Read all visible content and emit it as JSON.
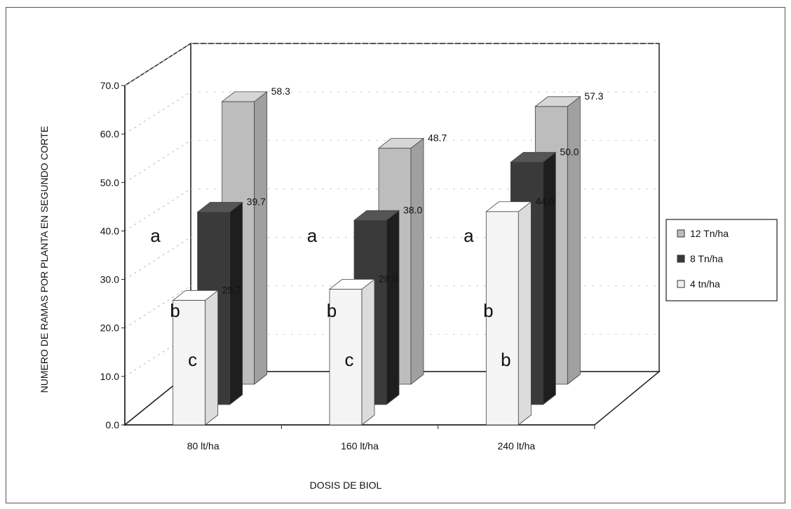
{
  "chart_data": {
    "type": "bar",
    "title": "",
    "xlabel": "DOSIS DE BIOL",
    "ylabel": "NUMERO DE RAMAS POR PLANTA EN SEGUNDO CORTE",
    "ylim": [
      0,
      70
    ],
    "yticks": [
      "0.0",
      "10.0",
      "20.0",
      "30.0",
      "40.0",
      "50.0",
      "60.0",
      "70.0"
    ],
    "categories": [
      "80 lt/ha",
      "160 lt/ha",
      "240 lt/ha"
    ],
    "series": [
      {
        "name": "12 Tn/ha",
        "values": [
          58.3,
          48.7,
          57.3
        ],
        "labels": [
          "58.3",
          "48.7",
          "57.3"
        ],
        "color": "#bdbdbd"
      },
      {
        "name": "8 Tn/ha",
        "values": [
          39.7,
          38.0,
          50.0
        ],
        "labels": [
          "39.7",
          "38.0",
          "50.0"
        ],
        "color": "#3a3a3a"
      },
      {
        "name": "4 tn/ha",
        "values": [
          25.7,
          28.0,
          44.0
        ],
        "labels": [
          "25.7",
          "28.0",
          "44.0"
        ],
        "color": "#f4f4f4"
      }
    ],
    "significance_letters": [
      {
        "category": "80 lt/ha",
        "letters": [
          "a",
          "b",
          "c"
        ]
      },
      {
        "category": "160 lt/ha",
        "letters": [
          "a",
          "b",
          "c"
        ]
      },
      {
        "category": "240 lt/ha",
        "letters": [
          "a",
          "b",
          "b"
        ]
      }
    ],
    "legend_position": "right",
    "grid": true
  }
}
